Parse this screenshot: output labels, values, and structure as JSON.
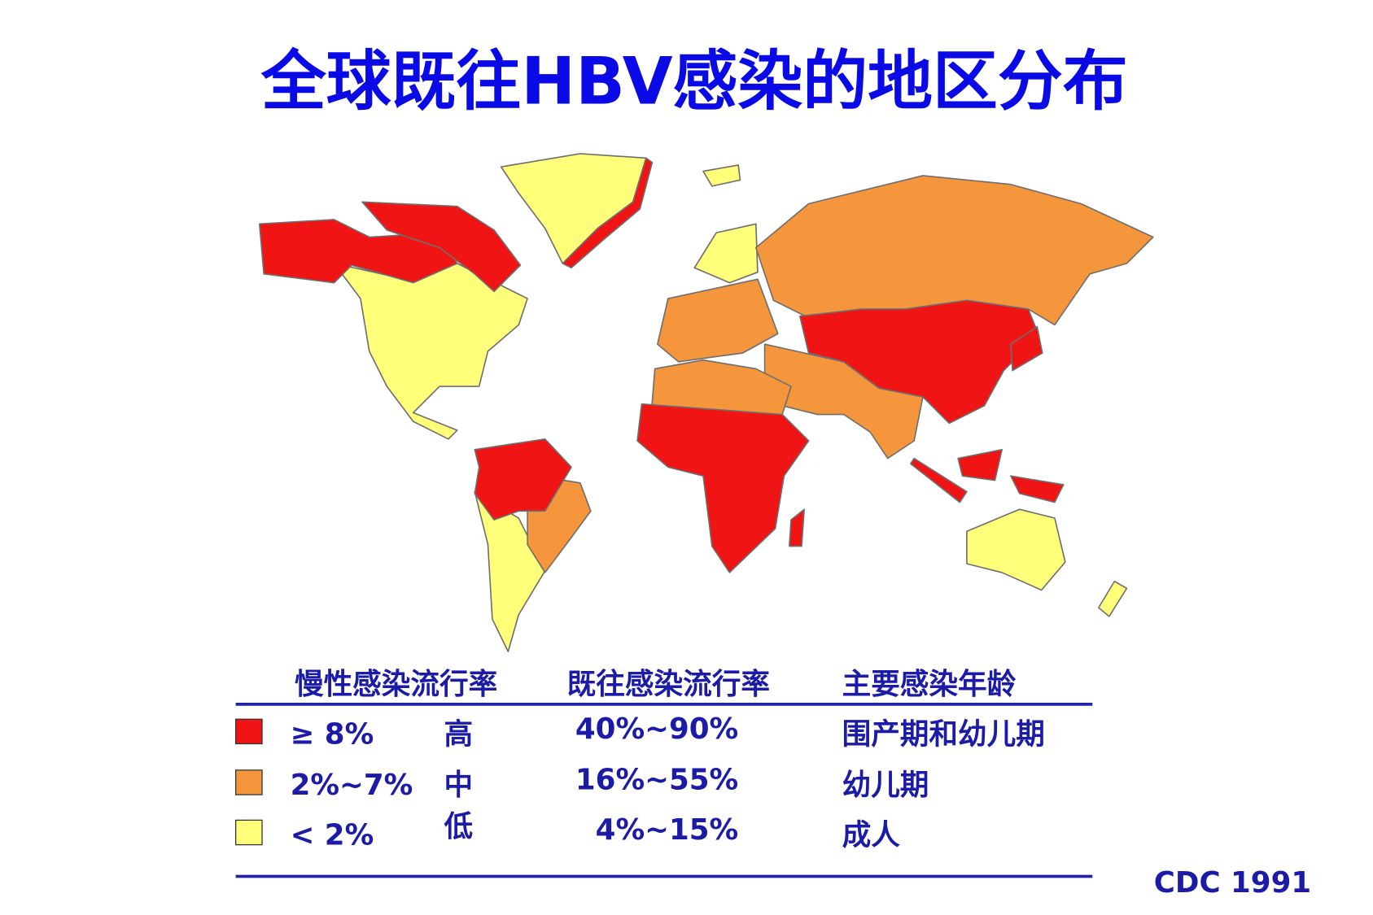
{
  "title": "全球既往HBV感染的地区分布",
  "table": {
    "headers": [
      "慢性感染流行率",
      "既往感染流行率",
      "主要感染年龄"
    ],
    "rows": [
      {
        "color": "#f01414",
        "prevalence": "≥ 8%",
        "level": "高",
        "past_infection": "40%~90%",
        "age": "围产期和幼儿期"
      },
      {
        "color": "#f5963c",
        "prevalence": "2%~7%",
        "level": "中",
        "past_infection": "16%~55%",
        "age": "幼儿期"
      },
      {
        "color": "#ffff7a",
        "prevalence": "< 2%",
        "level": "低",
        "past_infection": "4%~15%",
        "age": "成人"
      }
    ]
  },
  "source": "CDC 1991"
}
